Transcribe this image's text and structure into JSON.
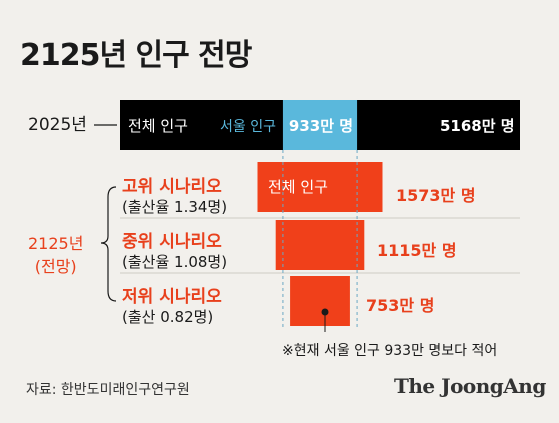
{
  "title": "2125년 인구 전망",
  "year_2025_label": "2025년",
  "year_2125_label_line1": "2125년",
  "year_2125_label_line2": "(전망)",
  "top_bar": {
    "total_label": "전체 인구",
    "seoul_label": "서울 인구",
    "seoul_value_label": "933만 명",
    "total_value_label": "5168만 명"
  },
  "scenarios": [
    {
      "name": "고위 시나리오",
      "rate": "(출산율 1.34명)",
      "value_label": "1573만 명",
      "bar_label": "전체 인구"
    },
    {
      "name": "중위 시나리오",
      "rate": "(출산율 1.08명)",
      "value_label": "1115만 명",
      "bar_label": ""
    },
    {
      "name": "저위 시나리오",
      "rate": "(출산 0.82명)",
      "value_label": "753만 명",
      "bar_label": ""
    }
  ],
  "note": "※현재 서울 인구 933만 명보다 적어",
  "source": "자료: 한반도미래인구연구원",
  "brand": "The JoongAng",
  "colors": {
    "background": "#f2f0ec",
    "black_bar": "#000000",
    "seoul": "#5ab8dc",
    "scenario": "#f0401a",
    "accent_text": "#e8401c"
  },
  "chart_data": {
    "type": "bar",
    "title": "2125년 인구 전망",
    "unit": "만 명",
    "categories": [
      "2025년 전체 인구",
      "서울 인구",
      "고위 시나리오",
      "중위 시나리오",
      "저위 시나리오"
    ],
    "values": [
      5168,
      933,
      1573,
      1115,
      753
    ]
  }
}
